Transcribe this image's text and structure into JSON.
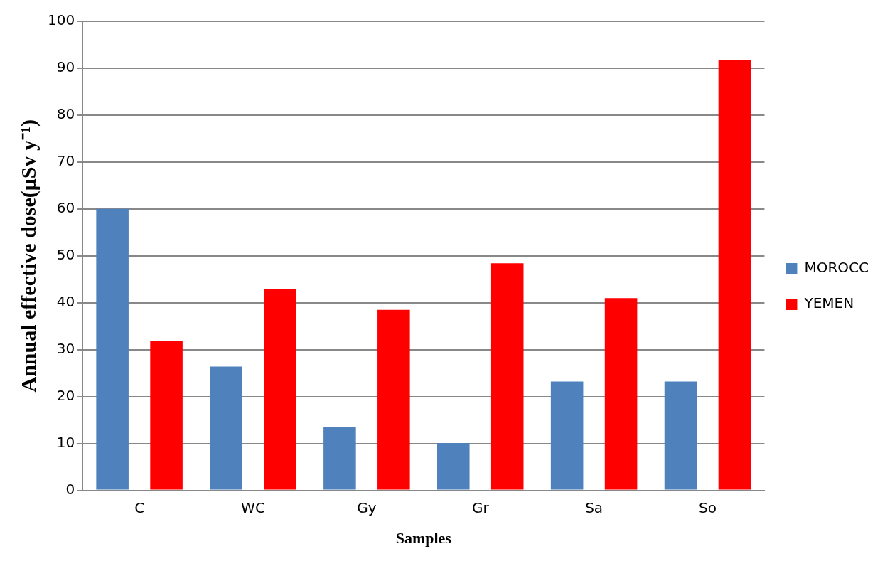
{
  "chart_data": {
    "type": "bar",
    "xlabel": "Samples",
    "ylabel": "Annual effective dose(μSv y⁻¹)",
    "categories": [
      "C",
      "WC",
      "Gy",
      "Gr",
      "Sa",
      "So"
    ],
    "series": [
      {
        "name": "MOROCC",
        "color": "#4f81bd",
        "values": [
          60,
          26.4,
          13.5,
          10.1,
          23.2,
          23.2
        ]
      },
      {
        "name": "YEMEN",
        "color": "#ff0000",
        "values": [
          31.8,
          43,
          38.5,
          48.4,
          41,
          91.7
        ]
      }
    ],
    "ylim": [
      0,
      100
    ],
    "yticks": [
      0,
      10,
      20,
      30,
      40,
      50,
      60,
      70,
      80,
      90,
      100
    ],
    "grid": "y",
    "legend": "right"
  }
}
